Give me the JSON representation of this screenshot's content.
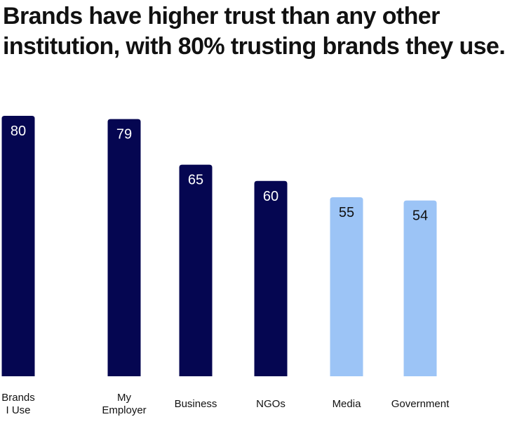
{
  "title": "Brands have higher trust than any other institution, with 80% trusting brands they use.",
  "colors": {
    "dark": "#050651",
    "light": "#9cc4f6",
    "label_on_dark": "#ffffff",
    "label_on_light": "#111111"
  },
  "chart_data": {
    "type": "bar",
    "categories": [
      [
        "Brands",
        "I Use"
      ],
      [
        "My",
        "Employer"
      ],
      [
        "Business"
      ],
      [
        "NGOs"
      ],
      [
        "Media"
      ],
      [
        "Government"
      ]
    ],
    "values": [
      80,
      79,
      65,
      60,
      55,
      54
    ],
    "bar_colors": [
      "dark",
      "dark",
      "dark",
      "dark",
      "light",
      "light"
    ],
    "title": "Brands have higher trust than any other institution, with 80% trusting brands they use.",
    "xlabel": "",
    "ylabel": "",
    "ylim": [
      0,
      80
    ],
    "grid": false,
    "data_labels": true
  }
}
